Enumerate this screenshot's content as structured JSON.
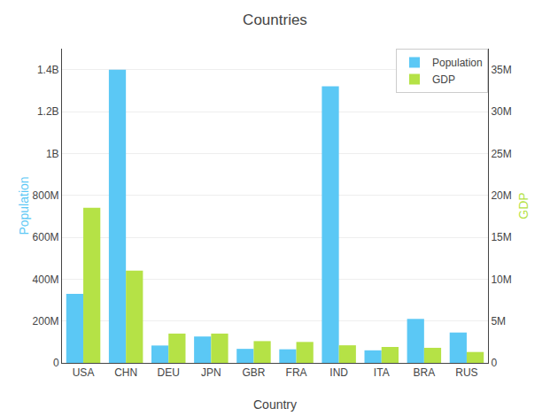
{
  "chart_data": {
    "type": "bar",
    "title": "Countries",
    "xlabel": "Country",
    "ylabel": "Population",
    "y2label": "GDP",
    "categories": [
      "USA",
      "CHN",
      "DEU",
      "JPN",
      "GBR",
      "FRA",
      "IND",
      "ITA",
      "BRA",
      "RUS"
    ],
    "series": [
      {
        "name": "Population",
        "color": "#5bc8f5",
        "axis": "y",
        "values": [
          330000000,
          1400000000,
          83000000,
          126000000,
          67000000,
          65000000,
          1320000000,
          60000000,
          210000000,
          145000000
        ]
      },
      {
        "name": "GDP",
        "color": "#b5e246",
        "axis": "y2",
        "values": [
          18500000,
          11000000,
          3500000,
          3500000,
          2600000,
          2500000,
          2100000,
          1900000,
          1800000,
          1300000
        ]
      }
    ],
    "ylim": [
      0,
      1500000000
    ],
    "yticks": [
      0,
      {
        "value": 200000000,
        "label": "200M"
      },
      {
        "value": 400000000,
        "label": "400M"
      },
      {
        "value": 600000000,
        "label": "600M"
      },
      {
        "value": 800000000,
        "label": "800M"
      },
      {
        "value": 1000000000,
        "label": "1B"
      },
      {
        "value": 1200000000,
        "label": "1.2B"
      },
      {
        "value": 1400000000,
        "label": "1.4B"
      }
    ],
    "y2lim": [
      0,
      37500000
    ],
    "y2ticks": [
      0,
      {
        "value": 5000000,
        "label": "5M"
      },
      {
        "value": 10000000,
        "label": "10M"
      },
      {
        "value": 15000000,
        "label": "15M"
      },
      {
        "value": 20000000,
        "label": "20M"
      },
      {
        "value": 25000000,
        "label": "25M"
      },
      {
        "value": 30000000,
        "label": "30M"
      },
      {
        "value": 35000000,
        "label": "35M"
      }
    ],
    "grid": true,
    "legend": "upper right"
  }
}
